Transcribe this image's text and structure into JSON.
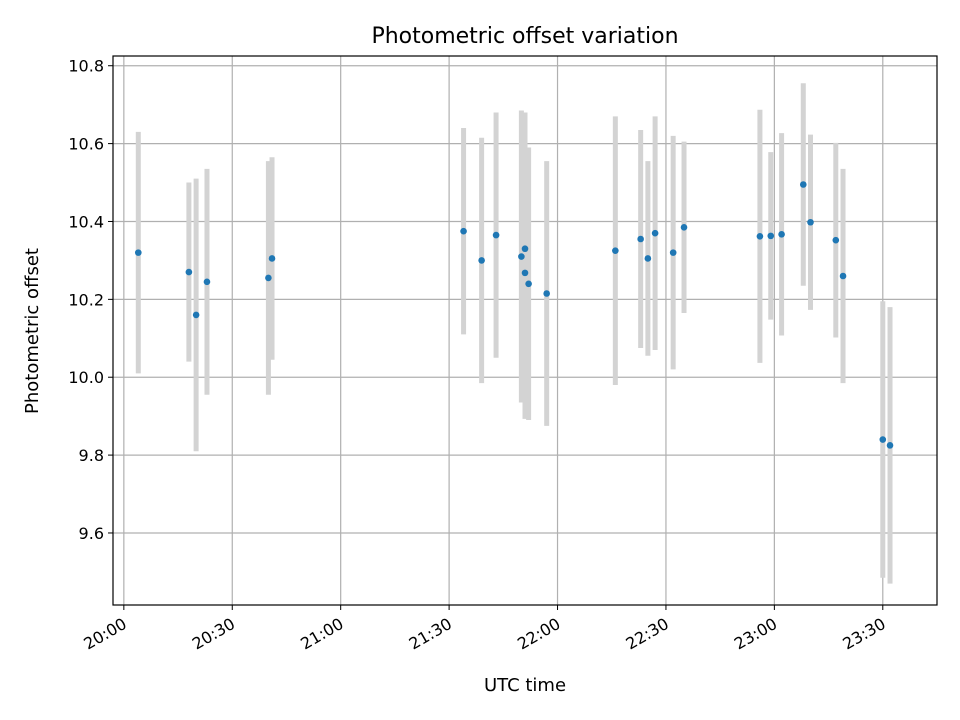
{
  "chart_data": {
    "type": "scatter",
    "title": "Photometric offset variation",
    "xlabel": "UTC time",
    "ylabel": "Photometric offset",
    "x_unit": "UTC time (HH:MM)",
    "xlim": [
      "19:57",
      "23:45"
    ],
    "ylim": [
      9.415,
      10.825
    ],
    "x_ticks": [
      "20:00",
      "20:30",
      "21:00",
      "21:30",
      "22:00",
      "22:30",
      "23:00",
      "23:30"
    ],
    "y_ticks": [
      "9.6",
      "9.8",
      "10.0",
      "10.2",
      "10.4",
      "10.6",
      "10.8"
    ],
    "grid": true,
    "legend": "none",
    "colors": {
      "marker": "#1f77b4",
      "errorbar": "#d3d3d3",
      "grid": "#b0b0b0"
    },
    "series": [
      {
        "points": [
          {
            "x": "20:04",
            "y": 10.32,
            "err": 0.31
          },
          {
            "x": "20:18",
            "y": 10.27,
            "err": 0.23
          },
          {
            "x": "20:20",
            "y": 10.16,
            "err": 0.35
          },
          {
            "x": "20:23",
            "y": 10.245,
            "err": 0.29
          },
          {
            "x": "20:40",
            "y": 10.255,
            "err": 0.3
          },
          {
            "x": "20:41",
            "y": 10.305,
            "err": 0.26
          },
          {
            "x": "21:34",
            "y": 10.375,
            "err": 0.265
          },
          {
            "x": "21:39",
            "y": 10.3,
            "err": 0.315
          },
          {
            "x": "21:43",
            "y": 10.365,
            "err": 0.315
          },
          {
            "x": "21:50",
            "y": 10.31,
            "err": 0.375
          },
          {
            "x": "21:51",
            "y": 10.33,
            "err": 0.35
          },
          {
            "x": "21:51",
            "y": 10.268,
            "err": 0.375
          },
          {
            "x": "21:52",
            "y": 10.24,
            "err": 0.35
          },
          {
            "x": "21:57",
            "y": 10.215,
            "err": 0.34
          },
          {
            "x": "22:16",
            "y": 10.325,
            "err": 0.345
          },
          {
            "x": "22:23",
            "y": 10.355,
            "err": 0.28
          },
          {
            "x": "22:25",
            "y": 10.305,
            "err": 0.25
          },
          {
            "x": "22:27",
            "y": 10.37,
            "err": 0.3
          },
          {
            "x": "22:32",
            "y": 10.32,
            "err": 0.3
          },
          {
            "x": "22:35",
            "y": 10.385,
            "err": 0.22
          },
          {
            "x": "22:56",
            "y": 10.362,
            "err": 0.325
          },
          {
            "x": "22:59",
            "y": 10.363,
            "err": 0.215
          },
          {
            "x": "23:02",
            "y": 10.367,
            "err": 0.26
          },
          {
            "x": "23:08",
            "y": 10.495,
            "err": 0.26
          },
          {
            "x": "23:10",
            "y": 10.398,
            "err": 0.225
          },
          {
            "x": "23:17",
            "y": 10.352,
            "err": 0.25
          },
          {
            "x": "23:19",
            "y": 10.26,
            "err": 0.275
          },
          {
            "x": "23:30",
            "y": 9.84,
            "err": 0.355
          },
          {
            "x": "23:32",
            "y": 9.825,
            "err": 0.355
          }
        ]
      }
    ]
  }
}
